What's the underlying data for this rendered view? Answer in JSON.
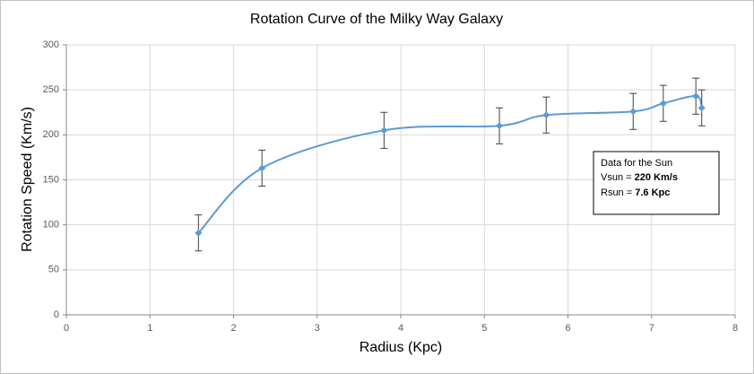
{
  "chart_data": {
    "type": "line",
    "title": "Rotation Curve of the Milky Way Galaxy",
    "x_label": "Radius (Kpc)",
    "y_label": "Rotation Speed (Km/s)",
    "x": [
      1.58,
      2.34,
      3.8,
      5.18,
      5.74,
      6.78,
      7.14,
      7.53,
      7.6
    ],
    "series": [
      {
        "name": "Rotation Speed",
        "color": "#5b9bd5",
        "values": [
          91,
          163,
          205,
          210,
          222,
          226,
          235,
          243,
          230
        ],
        "errors": [
          20,
          20,
          20,
          20,
          20,
          20,
          20,
          20,
          20
        ]
      }
    ],
    "xlim": [
      0,
      8
    ],
    "xticks": [
      0,
      1,
      2,
      3,
      4,
      5,
      6,
      7,
      8
    ],
    "ylim": [
      0,
      300
    ],
    "yticks": [
      0,
      50,
      100,
      150,
      200,
      250,
      300
    ],
    "grid": true,
    "smooth": true,
    "annotation": {
      "title": "Data for the Sun",
      "lines": [
        {
          "label": "Vsun =",
          "value": "220 Km/s"
        },
        {
          "label": "Rsun =",
          "value": "7.6 Kpc"
        }
      ]
    }
  }
}
